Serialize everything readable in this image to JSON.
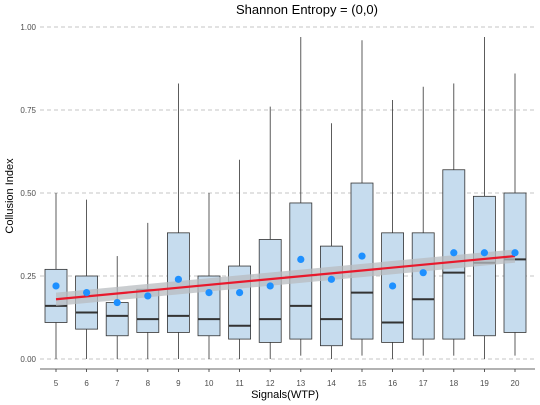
{
  "chart_data": {
    "type": "box",
    "title": "Shannon Entropy = (0,0)",
    "xlabel": "Signals(WTP)",
    "ylabel": "Collusion Index",
    "ylim": [
      0,
      1
    ],
    "yticks": [
      "0.00",
      "0.25",
      "0.50",
      "0.75",
      "1.00"
    ],
    "grid": "horizontal dashed",
    "categories": [
      "5",
      "6",
      "7",
      "8",
      "9",
      "10",
      "11",
      "12",
      "13",
      "14",
      "15",
      "16",
      "17",
      "18",
      "19",
      "20"
    ],
    "boxes": [
      {
        "min": 0.0,
        "q1": 0.11,
        "median": 0.16,
        "q3": 0.27,
        "max": 0.5,
        "mean": 0.22
      },
      {
        "min": 0.0,
        "q1": 0.09,
        "median": 0.14,
        "q3": 0.25,
        "max": 0.48,
        "mean": 0.2
      },
      {
        "min": 0.0,
        "q1": 0.07,
        "median": 0.13,
        "q3": 0.17,
        "max": 0.31,
        "mean": 0.17
      },
      {
        "min": 0.0,
        "q1": 0.08,
        "median": 0.12,
        "q3": 0.21,
        "max": 0.41,
        "mean": 0.19
      },
      {
        "min": 0.0,
        "q1": 0.08,
        "median": 0.13,
        "q3": 0.38,
        "max": 0.83,
        "mean": 0.24
      },
      {
        "min": 0.0,
        "q1": 0.07,
        "median": 0.12,
        "q3": 0.25,
        "max": 0.5,
        "mean": 0.2
      },
      {
        "min": 0.0,
        "q1": 0.06,
        "median": 0.1,
        "q3": 0.28,
        "max": 0.6,
        "mean": 0.2
      },
      {
        "min": 0.0,
        "q1": 0.05,
        "median": 0.12,
        "q3": 0.36,
        "max": 0.76,
        "mean": 0.22
      },
      {
        "min": 0.01,
        "q1": 0.06,
        "median": 0.16,
        "q3": 0.47,
        "max": 0.97,
        "mean": 0.3
      },
      {
        "min": 0.0,
        "q1": 0.04,
        "median": 0.12,
        "q3": 0.34,
        "max": 0.71,
        "mean": 0.24
      },
      {
        "min": 0.01,
        "q1": 0.06,
        "median": 0.2,
        "q3": 0.53,
        "max": 0.96,
        "mean": 0.31
      },
      {
        "min": 0.0,
        "q1": 0.05,
        "median": 0.11,
        "q3": 0.38,
        "max": 0.78,
        "mean": 0.22
      },
      {
        "min": 0.01,
        "q1": 0.06,
        "median": 0.18,
        "q3": 0.38,
        "max": 0.82,
        "mean": 0.26
      },
      {
        "min": 0.01,
        "q1": 0.06,
        "median": 0.26,
        "q3": 0.57,
        "max": 0.83,
        "mean": 0.32
      },
      {
        "min": 0.0,
        "q1": 0.07,
        "median": 0.29,
        "q3": 0.49,
        "max": 0.97,
        "mean": 0.32
      },
      {
        "min": 0.01,
        "q1": 0.08,
        "median": 0.3,
        "q3": 0.5,
        "max": 0.86,
        "mean": 0.32
      }
    ],
    "trend": {
      "start": 0.18,
      "end": 0.31,
      "band_start_low": 0.16,
      "band_start_high": 0.2,
      "band_end_low": 0.29,
      "band_end_high": 0.33
    },
    "colors": {
      "box_fill": "#c6dcee",
      "box_stroke": "#333333",
      "mean_point": "#1e90ff",
      "trend_line": "#e8192c",
      "confidence_band": "#b8bcc0"
    }
  }
}
